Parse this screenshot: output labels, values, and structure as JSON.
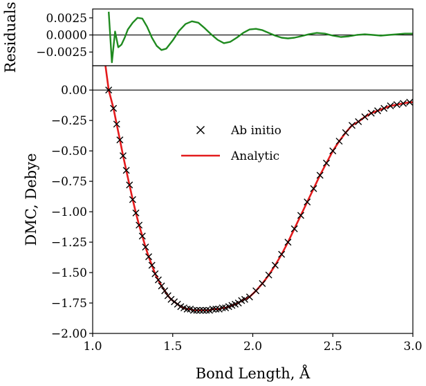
{
  "chart_data": [
    {
      "panel": "residuals",
      "type": "line",
      "ylabel": "Residuals",
      "xlim": [
        1.0,
        3.0
      ],
      "ylim": [
        -0.0045,
        0.0038
      ],
      "yticks": [
        0.0025,
        0.0,
        -0.0025
      ],
      "ytick_labels": [
        "0.0025",
        "0.0000",
        "−0.0025"
      ],
      "zero_line": true,
      "series": [
        {
          "color": "#1f8a1f",
          "x": [
            1.1,
            1.12,
            1.14,
            1.16,
            1.18,
            1.2,
            1.22,
            1.25,
            1.28,
            1.31,
            1.34,
            1.37,
            1.4,
            1.43,
            1.46,
            1.5,
            1.54,
            1.58,
            1.62,
            1.66,
            1.7,
            1.74,
            1.78,
            1.82,
            1.86,
            1.9,
            1.94,
            1.98,
            2.02,
            2.06,
            2.1,
            2.14,
            2.18,
            2.22,
            2.26,
            2.3,
            2.35,
            2.4,
            2.45,
            2.5,
            2.55,
            2.6,
            2.65,
            2.7,
            2.75,
            2.8,
            2.85,
            2.9,
            2.95,
            3.0
          ],
          "y": [
            0.0034,
            -0.004,
            0.0005,
            -0.0018,
            -0.0014,
            -0.0004,
            0.0008,
            0.0018,
            0.0025,
            0.0024,
            0.0012,
            -0.0004,
            -0.0016,
            -0.0022,
            -0.002,
            -0.0008,
            0.0006,
            0.0016,
            0.002,
            0.0018,
            0.001,
            0.0001,
            -0.0007,
            -0.0012,
            -0.001,
            -0.0004,
            0.0003,
            0.0008,
            0.0009,
            0.0007,
            0.0003,
            -0.0001,
            -0.0004,
            -0.0005,
            -0.0004,
            -0.0002,
            0.0001,
            0.0003,
            0.0002,
            -0.0001,
            -0.0003,
            -0.0002,
            0.0,
            0.0001,
            0.0,
            -0.0001,
            0.0,
            0.0001,
            0.0002,
            0.0002
          ]
        }
      ]
    },
    {
      "panel": "main",
      "type": "line",
      "xlabel": "Bond Length, Å",
      "ylabel": "DMC, Debye",
      "xlim": [
        1.0,
        3.0
      ],
      "ylim": [
        -2.0,
        0.2
      ],
      "xticks": [
        1.0,
        1.5,
        2.0,
        2.5,
        3.0
      ],
      "xtick_labels": [
        "1.0",
        "1.5",
        "2.0",
        "2.5",
        "3.0"
      ],
      "yticks": [
        0.0,
        -0.25,
        -0.5,
        -0.75,
        -1.0,
        -1.25,
        -1.5,
        -1.75,
        -2.0
      ],
      "ytick_labels": [
        "0.00",
        "−0.25",
        "−0.50",
        "−0.75",
        "−1.00",
        "−1.25",
        "−1.50",
        "−1.75",
        "−2.00"
      ],
      "zero_line": true,
      "legend_position": "upper-middle",
      "series": [
        {
          "name": "Ab initio",
          "marker": "x",
          "color": "#000000",
          "x": [
            1.1,
            1.13,
            1.15,
            1.17,
            1.19,
            1.21,
            1.23,
            1.25,
            1.27,
            1.29,
            1.31,
            1.33,
            1.35,
            1.37,
            1.39,
            1.41,
            1.43,
            1.45,
            1.47,
            1.49,
            1.51,
            1.53,
            1.55,
            1.57,
            1.59,
            1.61,
            1.63,
            1.65,
            1.67,
            1.69,
            1.71,
            1.73,
            1.75,
            1.77,
            1.79,
            1.81,
            1.83,
            1.85,
            1.87,
            1.89,
            1.91,
            1.93,
            1.95,
            1.98,
            2.02,
            2.06,
            2.1,
            2.14,
            2.18,
            2.22,
            2.26,
            2.3,
            2.34,
            2.38,
            2.42,
            2.46,
            2.5,
            2.54,
            2.58,
            2.62,
            2.66,
            2.7,
            2.74,
            2.78,
            2.82,
            2.86,
            2.9,
            2.94,
            2.98
          ],
          "y": [
            0.0,
            -0.15,
            -0.28,
            -0.41,
            -0.54,
            -0.66,
            -0.78,
            -0.9,
            -1.01,
            -1.11,
            -1.2,
            -1.29,
            -1.37,
            -1.44,
            -1.51,
            -1.56,
            -1.61,
            -1.65,
            -1.69,
            -1.72,
            -1.74,
            -1.76,
            -1.78,
            -1.79,
            -1.8,
            -1.8,
            -1.81,
            -1.81,
            -1.81,
            -1.81,
            -1.81,
            -1.81,
            -1.8,
            -1.8,
            -1.8,
            -1.79,
            -1.79,
            -1.78,
            -1.77,
            -1.76,
            -1.75,
            -1.73,
            -1.72,
            -1.7,
            -1.65,
            -1.59,
            -1.52,
            -1.44,
            -1.35,
            -1.25,
            -1.14,
            -1.03,
            -0.92,
            -0.81,
            -0.7,
            -0.6,
            -0.5,
            -0.42,
            -0.35,
            -0.29,
            -0.26,
            -0.22,
            -0.19,
            -0.17,
            -0.15,
            -0.13,
            -0.12,
            -0.11,
            -0.1
          ]
        },
        {
          "name": "Analytic",
          "color": "#e31a1c",
          "x": [
            1.08,
            1.1,
            1.13,
            1.15,
            1.17,
            1.19,
            1.21,
            1.23,
            1.25,
            1.27,
            1.29,
            1.31,
            1.33,
            1.35,
            1.37,
            1.39,
            1.41,
            1.43,
            1.45,
            1.47,
            1.49,
            1.51,
            1.53,
            1.55,
            1.57,
            1.59,
            1.61,
            1.63,
            1.65,
            1.67,
            1.69,
            1.71,
            1.73,
            1.75,
            1.77,
            1.79,
            1.81,
            1.83,
            1.85,
            1.87,
            1.89,
            1.91,
            1.93,
            1.95,
            1.98,
            2.02,
            2.06,
            2.1,
            2.14,
            2.18,
            2.22,
            2.26,
            2.3,
            2.34,
            2.38,
            2.42,
            2.46,
            2.5,
            2.54,
            2.58,
            2.62,
            2.66,
            2.7,
            2.74,
            2.78,
            2.82,
            2.86,
            2.9,
            2.94,
            2.98,
            3.0
          ],
          "y": [
            0.2,
            0.0,
            -0.15,
            -0.28,
            -0.41,
            -0.54,
            -0.66,
            -0.78,
            -0.9,
            -1.01,
            -1.11,
            -1.2,
            -1.29,
            -1.37,
            -1.44,
            -1.51,
            -1.56,
            -1.61,
            -1.65,
            -1.69,
            -1.72,
            -1.74,
            -1.76,
            -1.78,
            -1.79,
            -1.8,
            -1.8,
            -1.81,
            -1.81,
            -1.81,
            -1.81,
            -1.81,
            -1.81,
            -1.8,
            -1.8,
            -1.8,
            -1.79,
            -1.79,
            -1.78,
            -1.77,
            -1.76,
            -1.75,
            -1.73,
            -1.72,
            -1.7,
            -1.65,
            -1.59,
            -1.52,
            -1.44,
            -1.35,
            -1.25,
            -1.14,
            -1.03,
            -0.92,
            -0.81,
            -0.7,
            -0.6,
            -0.5,
            -0.42,
            -0.35,
            -0.29,
            -0.26,
            -0.22,
            -0.19,
            -0.17,
            -0.15,
            -0.13,
            -0.12,
            -0.11,
            -0.1,
            -0.1
          ]
        }
      ]
    }
  ]
}
